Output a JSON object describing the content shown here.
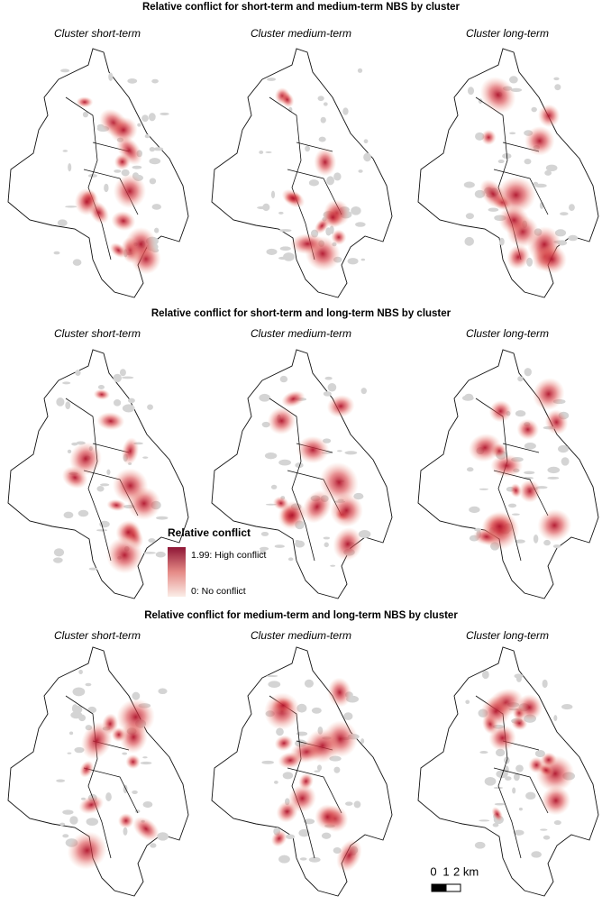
{
  "rows": [
    {
      "title": "Relative conflict for short-term and medium-term NBS by cluster",
      "panels": [
        {
          "title": "Cluster short-term"
        },
        {
          "title": "Cluster medium-term"
        },
        {
          "title": "Cluster long-term"
        }
      ]
    },
    {
      "title": "Relative conflict for short-term and long-term NBS by cluster",
      "panels": [
        {
          "title": "Cluster short-term"
        },
        {
          "title": "Cluster medium-term"
        },
        {
          "title": "Cluster long-term"
        }
      ]
    },
    {
      "title": "Relative conflict for medium-term and long-term NBS by cluster",
      "panels": [
        {
          "title": "Cluster short-term"
        },
        {
          "title": "Cluster medium-term"
        },
        {
          "title": "Cluster long-term"
        }
      ]
    }
  ],
  "legend": {
    "title": "Relative conflict",
    "high": "1.99: High conflict",
    "low": "0: No conflict"
  },
  "scale_bar": {
    "labels": [
      "0",
      "1",
      "2 km"
    ]
  }
}
